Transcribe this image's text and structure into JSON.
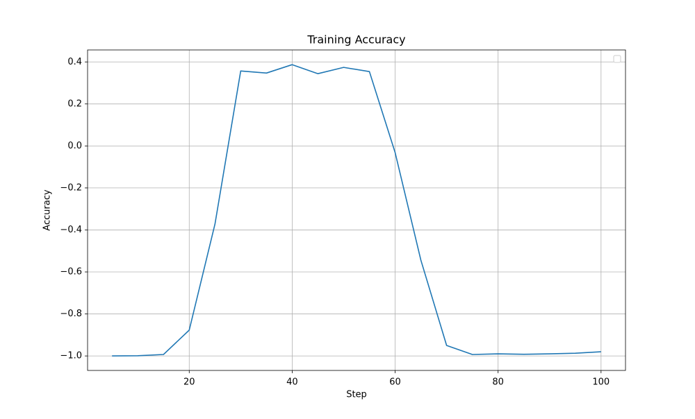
{
  "chart_data": {
    "type": "line",
    "title": "Training Accuracy",
    "xlabel": "Step",
    "ylabel": "Accuracy",
    "x": [
      5,
      10,
      15,
      20,
      25,
      30,
      35,
      40,
      45,
      50,
      55,
      60,
      65,
      70,
      75,
      80,
      85,
      90,
      95,
      100
    ],
    "values": [
      -1.0,
      -0.999,
      -0.993,
      -0.877,
      -0.372,
      0.357,
      0.347,
      0.387,
      0.344,
      0.374,
      0.354,
      -0.032,
      -0.544,
      -0.95,
      -0.993,
      -0.99,
      -0.992,
      -0.99,
      -0.987,
      -0.98
    ],
    "color": "#1f77b4",
    "xlim": [
      0.25,
      104.75
    ],
    "xticks": [
      20,
      40,
      60,
      80,
      100
    ],
    "ylim": [
      -1.069,
      0.457
    ],
    "yticks": [
      {
        "value": -1.0,
        "label": "−1.0"
      },
      {
        "value": -0.8,
        "label": "−0.8"
      },
      {
        "value": -0.6,
        "label": "−0.6"
      },
      {
        "value": -0.4,
        "label": "−0.4"
      },
      {
        "value": -0.2,
        "label": "−0.2"
      },
      {
        "value": 0,
        "label": "0.0"
      },
      0.2,
      0.4
    ],
    "grid": true,
    "legend": "upper right"
  }
}
